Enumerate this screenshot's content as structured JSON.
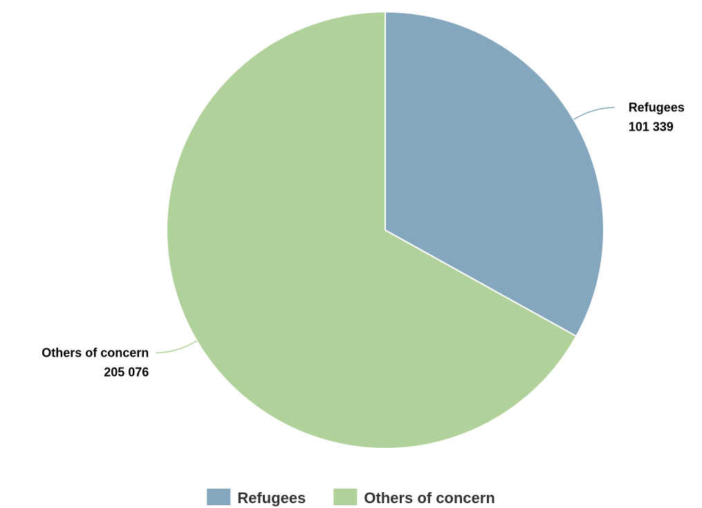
{
  "chart_data": {
    "type": "pie",
    "slices": [
      {
        "name": "Refugees",
        "value": 101339,
        "display_value": "101 339",
        "color": "#84a7bd"
      },
      {
        "name": "Others of concern",
        "value": 205076,
        "display_value": "205 076",
        "color": "#b0d19a"
      }
    ],
    "start": "12 o'clock",
    "direction": "clockwise",
    "slice_border_color": "#ffffff",
    "legend": {
      "placement": "bottom-center",
      "items": [
        "Refugees",
        "Others of concern"
      ]
    }
  }
}
